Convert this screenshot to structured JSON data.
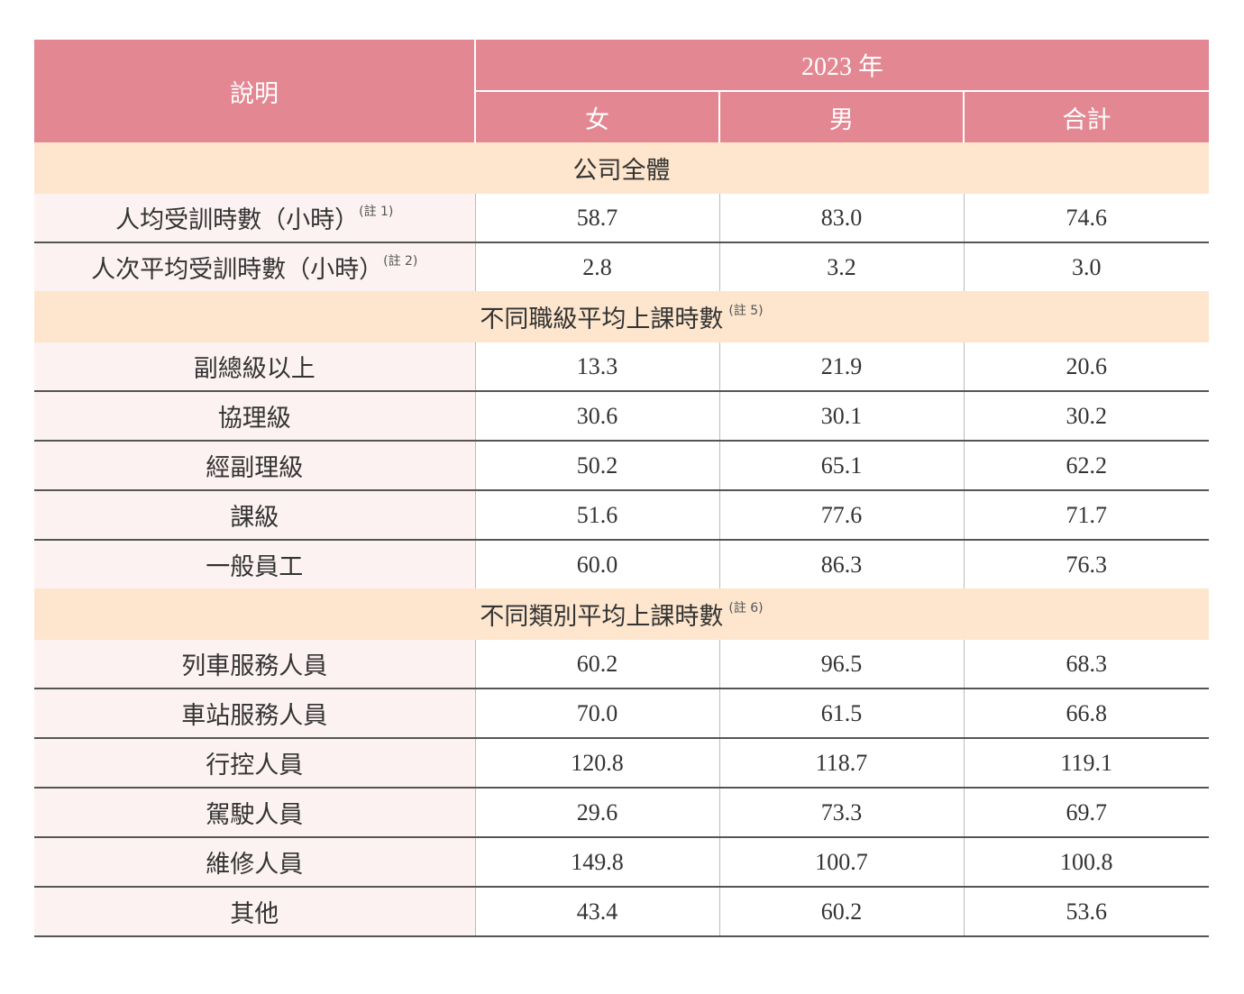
{
  "header": {
    "label": "說明",
    "year": "2023 年",
    "columns": [
      "女",
      "男",
      "合計"
    ]
  },
  "sections": [
    {
      "title": "公司全體",
      "note": "",
      "rows": [
        {
          "label": "人均受訓時數（小時）",
          "note": "(註 1)",
          "values": [
            "58.7",
            "83.0",
            "74.6"
          ]
        },
        {
          "label": "人次平均受訓時數（小時）",
          "note": "(註 2)",
          "values": [
            "2.8",
            "3.2",
            "3.0"
          ]
        }
      ]
    },
    {
      "title": "不同職級平均上課時數",
      "note": "(註 5)",
      "rows": [
        {
          "label": "副總級以上",
          "note": "",
          "values": [
            "13.3",
            "21.9",
            "20.6"
          ]
        },
        {
          "label": "協理級",
          "note": "",
          "values": [
            "30.6",
            "30.1",
            "30.2"
          ]
        },
        {
          "label": "經副理級",
          "note": "",
          "values": [
            "50.2",
            "65.1",
            "62.2"
          ]
        },
        {
          "label": "課級",
          "note": "",
          "values": [
            "51.6",
            "77.6",
            "71.7"
          ]
        },
        {
          "label": "一般員工",
          "note": "",
          "values": [
            "60.0",
            "86.3",
            "76.3"
          ]
        }
      ]
    },
    {
      "title": "不同類別平均上課時數",
      "note": "(註 6)",
      "rows": [
        {
          "label": "列車服務人員",
          "note": "",
          "values": [
            "60.2",
            "96.5",
            "68.3"
          ]
        },
        {
          "label": "車站服務人員",
          "note": "",
          "values": [
            "70.0",
            "61.5",
            "66.8"
          ]
        },
        {
          "label": "行控人員",
          "note": "",
          "values": [
            "120.8",
            "118.7",
            "119.1"
          ]
        },
        {
          "label": "駕駛人員",
          "note": "",
          "values": [
            "29.6",
            "73.3",
            "69.7"
          ]
        },
        {
          "label": "維修人員",
          "note": "",
          "values": [
            "149.8",
            "100.7",
            "100.8"
          ]
        },
        {
          "label": "其他",
          "note": "",
          "values": [
            "43.4",
            "60.2",
            "53.6"
          ]
        }
      ]
    }
  ],
  "colors": {
    "header_bg": "#e38792",
    "section_bg": "#fde6cd",
    "label_bg": "#fdf2f2"
  }
}
